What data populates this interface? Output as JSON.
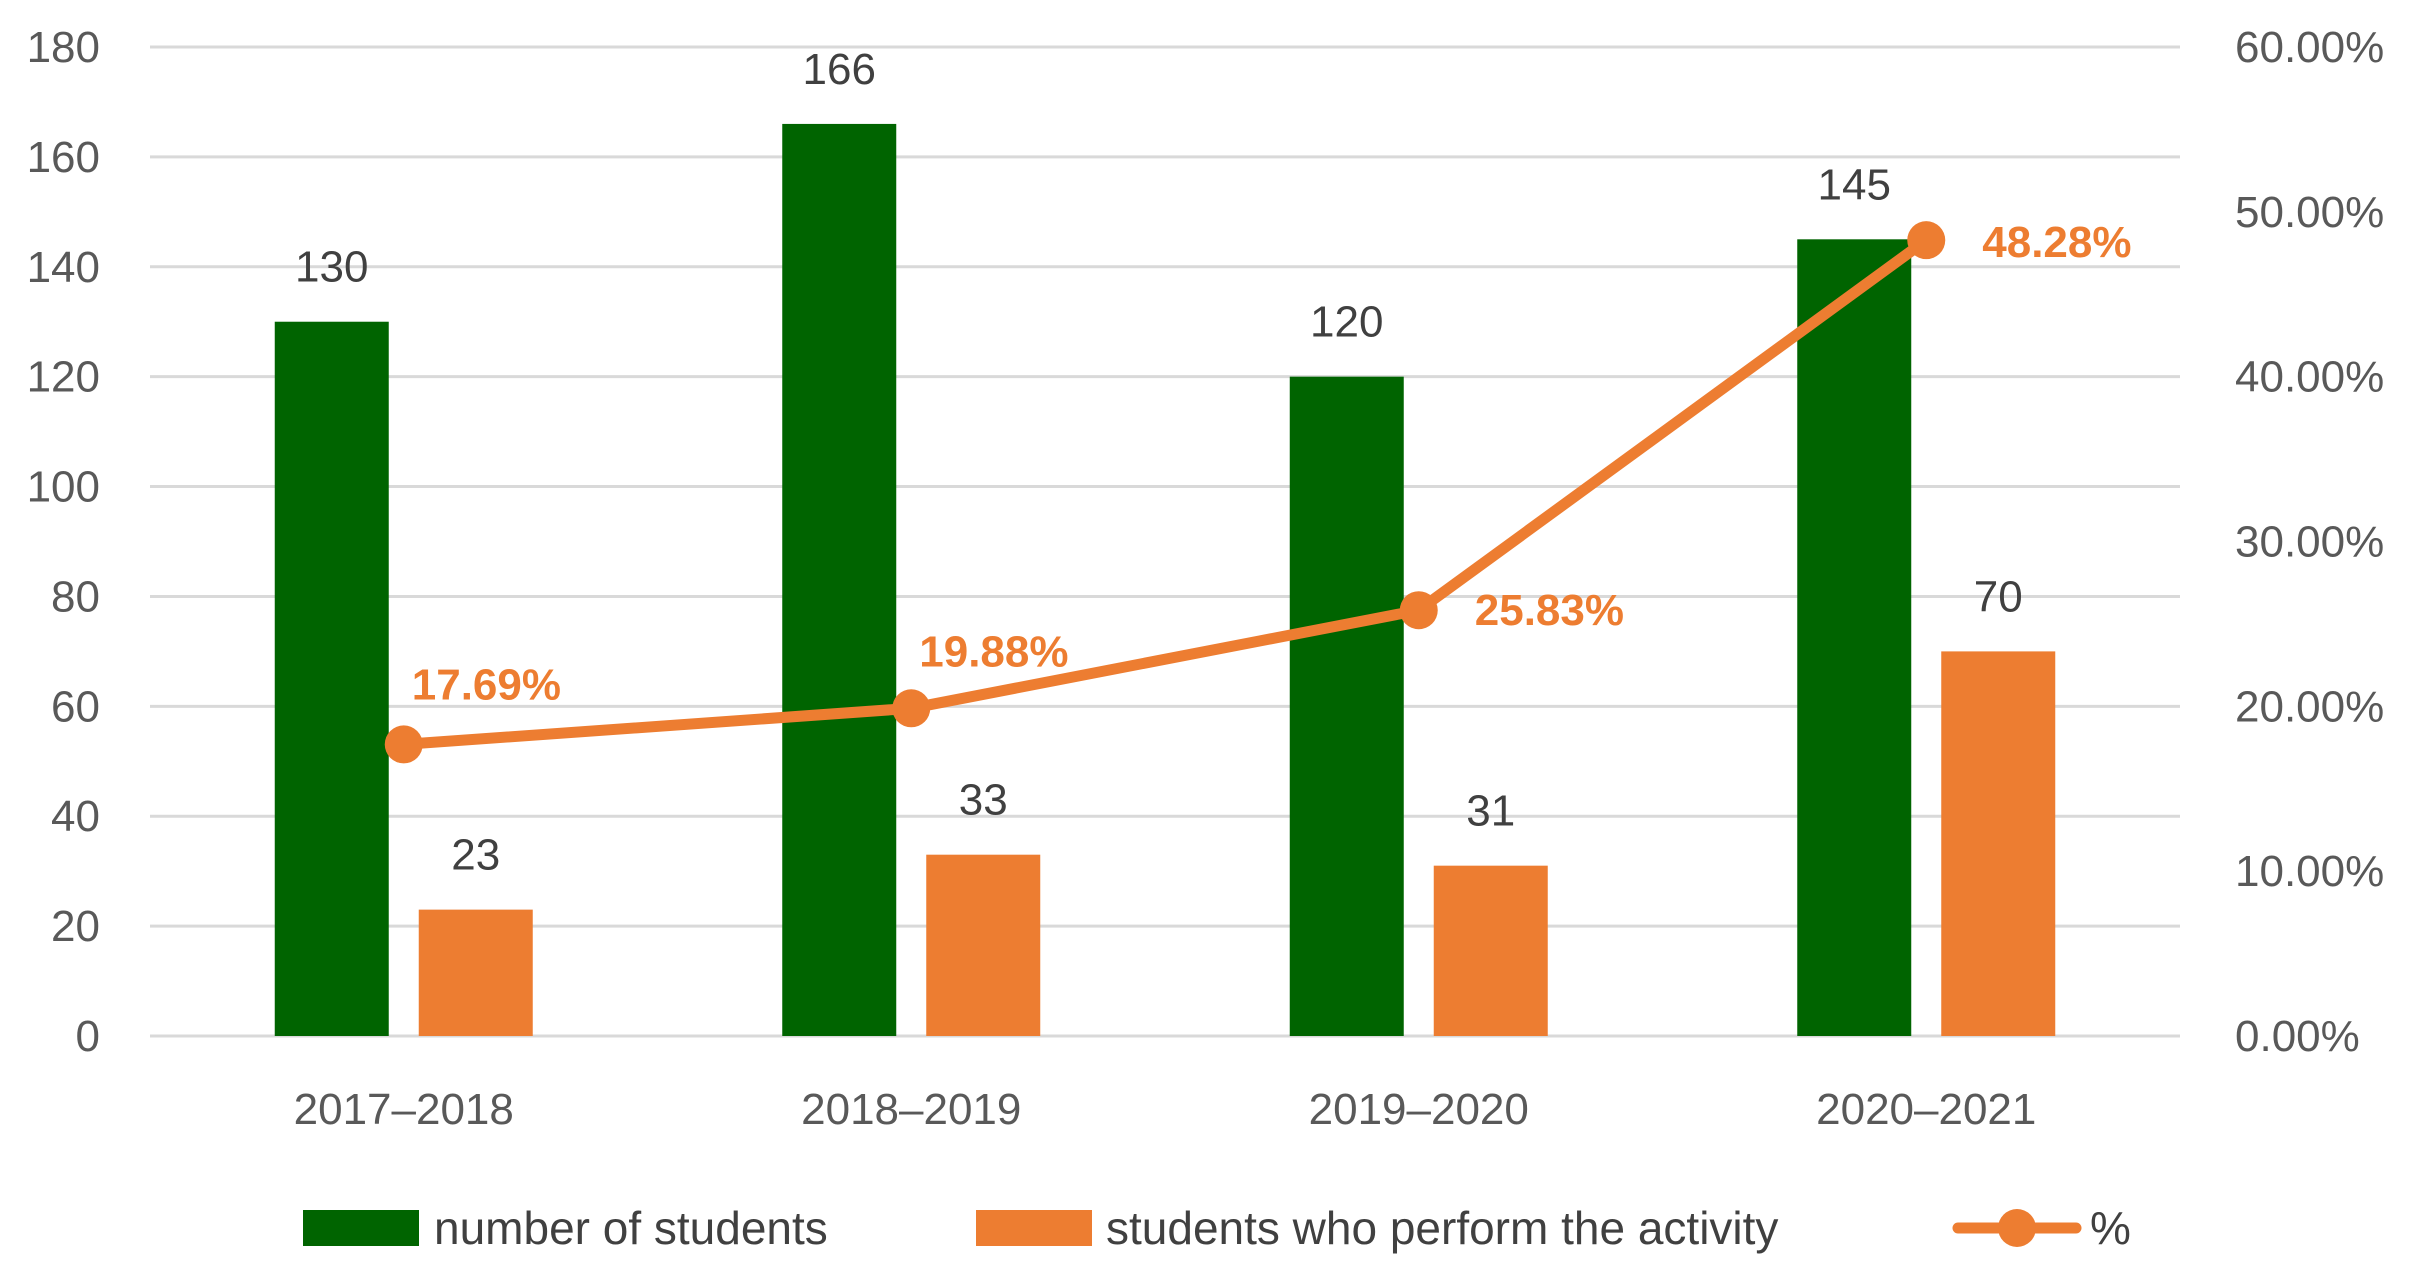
{
  "chart_data": {
    "type": "bar",
    "categories": [
      "2017–2018",
      "2018–2019",
      "2019–2020",
      "2020–2021"
    ],
    "series": [
      {
        "name": "number of students",
        "type": "bar",
        "axis": "left",
        "color": "#006400",
        "values": [
          130,
          166,
          120,
          145
        ]
      },
      {
        "name": "students who perform the activity",
        "type": "bar",
        "axis": "left",
        "color": "#ED7D31",
        "values": [
          23,
          33,
          31,
          70
        ]
      },
      {
        "name": "%",
        "type": "line",
        "axis": "right",
        "color": "#ED7D31",
        "values": [
          17.69,
          19.88,
          25.83,
          48.28
        ],
        "labels": [
          "17.69%",
          "19.88%",
          "25.83%",
          "48.28%"
        ]
      }
    ],
    "y_left": {
      "min": 0,
      "max": 180,
      "step": 20,
      "ticks": [
        "0",
        "20",
        "40",
        "60",
        "80",
        "100",
        "120",
        "140",
        "160",
        "180"
      ]
    },
    "y_right": {
      "min": 0,
      "max": 60,
      "step": 10,
      "ticks": [
        "0.00%",
        "10.00%",
        "20.00%",
        "30.00%",
        "40.00%",
        "50.00%",
        "60.00%"
      ]
    },
    "grid": true,
    "legend": "bottom",
    "title": "",
    "xlabel": "",
    "ylabel": ""
  }
}
